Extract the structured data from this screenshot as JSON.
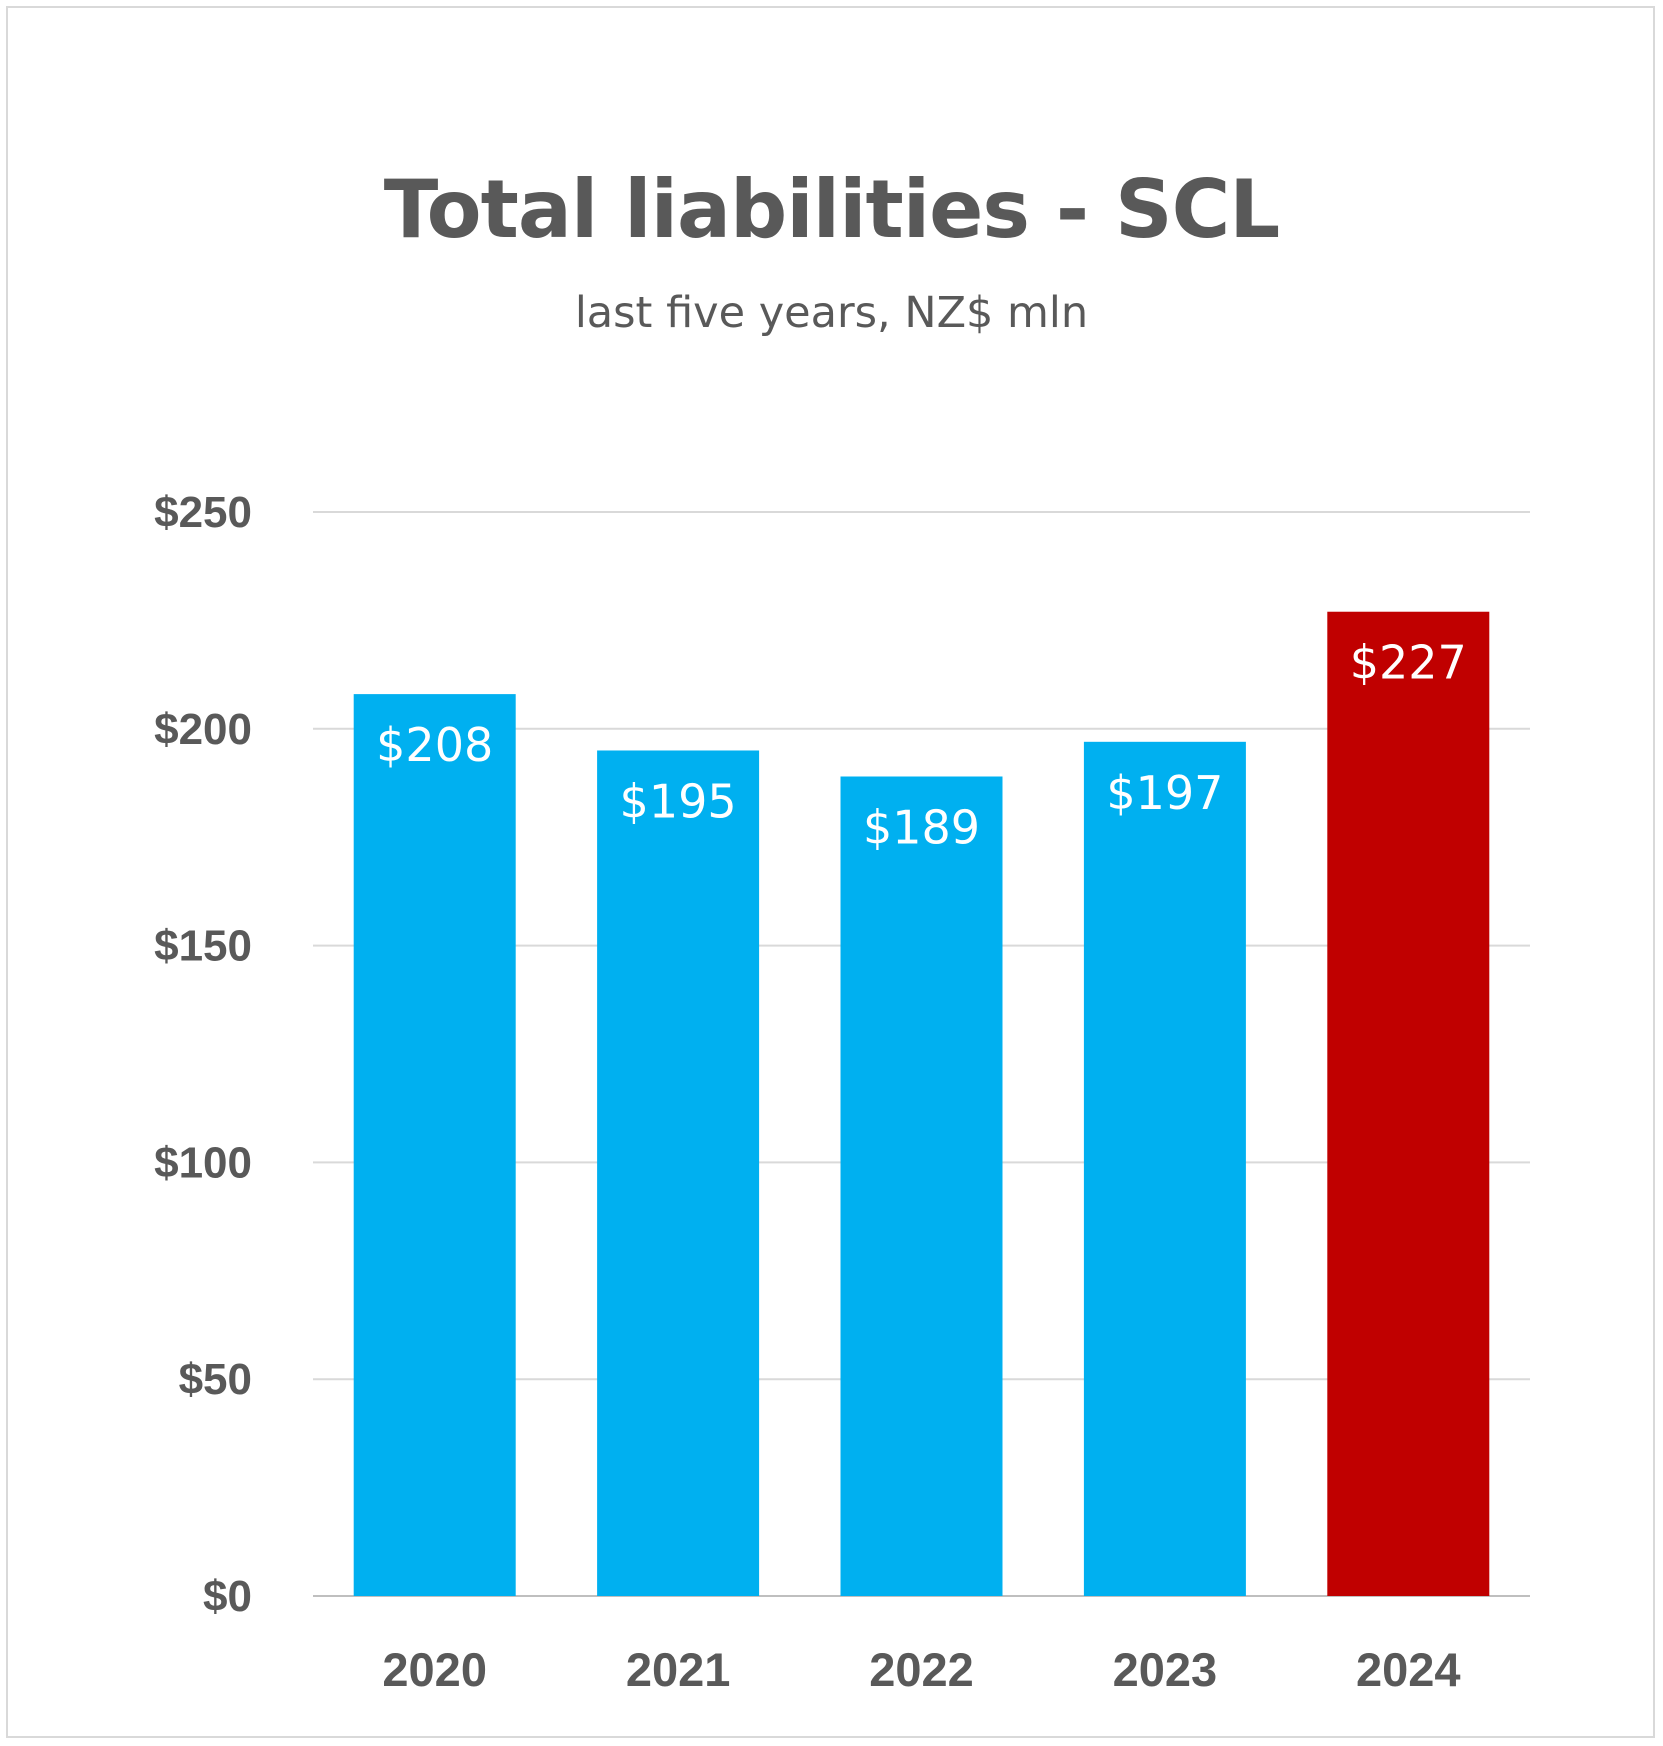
{
  "chart_data": {
    "type": "bar",
    "title": "Total liabilities - SCL",
    "subtitle": "last five years, NZ$ mln",
    "categories": [
      "2020",
      "2021",
      "2022",
      "2023",
      "2024"
    ],
    "values": [
      208,
      195,
      189,
      197,
      227
    ],
    "data_labels": [
      "$208",
      "$195",
      "$189",
      "$197",
      "$227"
    ],
    "bar_colors": [
      "#00b0f0",
      "#00b0f0",
      "#00b0f0",
      "#00b0f0",
      "#c00000"
    ],
    "ylim": [
      0,
      250
    ],
    "yticks": [
      0,
      50,
      100,
      150,
      200,
      250
    ],
    "ytick_labels": [
      "$0",
      "$50",
      "$100",
      "$150",
      "$200",
      "$250"
    ],
    "xlabel": "",
    "ylabel": "",
    "grid": true,
    "legend": "none"
  },
  "colors": {
    "highlight": "#c00000",
    "primary": "#00b0f0",
    "text": "#595959",
    "gridline": "#d9d9d9"
  }
}
